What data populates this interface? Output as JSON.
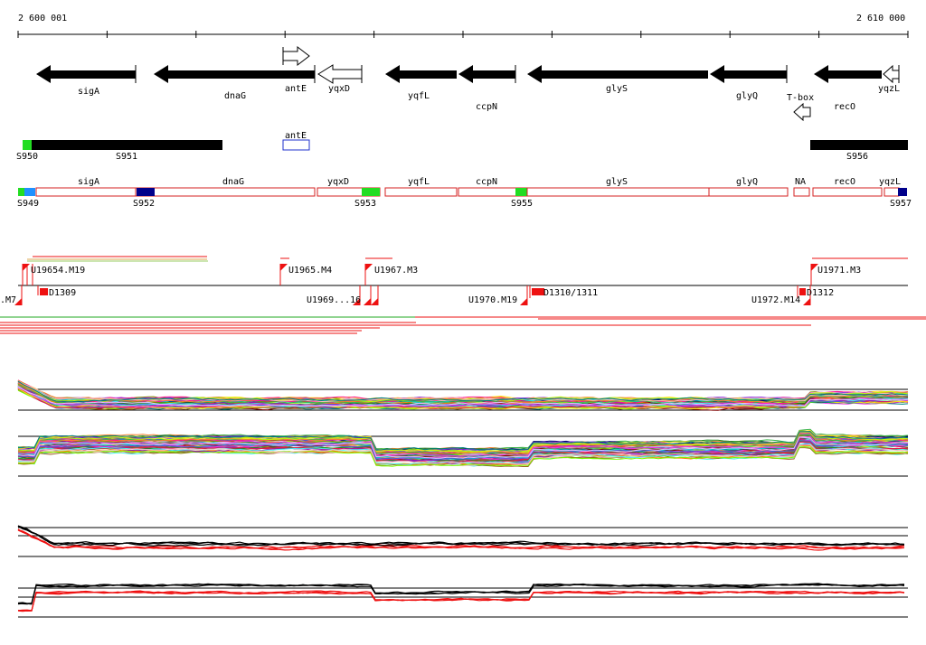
{
  "ruler": {
    "start_label": "2 600 001",
    "end_label": "2 610 000"
  },
  "colors": {
    "gene_fill": "#000000",
    "outline_box": "#d42020",
    "marker_green": "#22dd22",
    "marker_blue": "#00008b",
    "marker_light_blue": "#1e90ff",
    "red": "#ee1111",
    "ante_box": "#2233cc"
  },
  "genes": [
    {
      "name": "sigA",
      "strand": "-",
      "fill": "black"
    },
    {
      "name": "dnaG",
      "strand": "-",
      "fill": "black"
    },
    {
      "name": "antE",
      "strand": "+",
      "fill": "white"
    },
    {
      "name": "yqxD",
      "strand": "-",
      "fill": "white"
    },
    {
      "name": "yqfL",
      "strand": "-",
      "fill": "black"
    },
    {
      "name": "ccpN",
      "strand": "-",
      "fill": "black"
    },
    {
      "name": "glyS",
      "strand": "-",
      "fill": "black"
    },
    {
      "name": "glyQ",
      "strand": "-",
      "fill": "black"
    },
    {
      "name": "T-box",
      "strand": "-",
      "fill": "white"
    },
    {
      "name": "recO",
      "strand": "-",
      "fill": "black"
    },
    {
      "name": "yqzL",
      "strand": "-",
      "fill": "white"
    }
  ],
  "upper_segments": {
    "labels": [
      "S950",
      "S951",
      "S956"
    ],
    "box_label": "antE"
  },
  "segments": {
    "labels": [
      "S949",
      "S952",
      "S953",
      "S955",
      "S957"
    ],
    "box_labels": [
      "sigA",
      "dnaG",
      "yqxD",
      "yqfL",
      "ccpN",
      "glyS",
      "glyQ",
      "NA",
      "recO",
      "yqzL"
    ]
  },
  "transcripts": {
    "labels": [
      "U1965.M4",
      "U1967.M3",
      "U1971.M3",
      "D1309",
      "U1970.M19",
      "U1972.M14",
      "D1312"
    ],
    "overlap_labels": [
      ".M7",
      "U19654.M19",
      "U1969...16",
      "D1310/1311"
    ]
  },
  "tracks": {
    "multi_profile": {
      "series_count": 60
    },
    "summary_profile": {
      "series_colors": [
        "black",
        "red"
      ]
    }
  }
}
